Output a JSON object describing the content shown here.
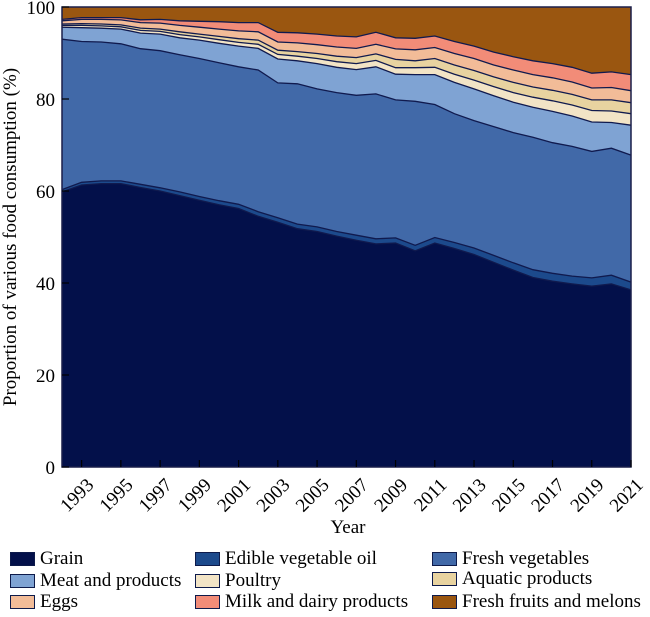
{
  "chart_data": {
    "type": "area",
    "stacked": true,
    "title": "",
    "xlabel": "Year",
    "ylabel": "Proportion of various food consumption (%)",
    "xlim": [
      1992,
      2021
    ],
    "ylim": [
      0,
      100
    ],
    "yticks": [
      0,
      20,
      40,
      60,
      80,
      100
    ],
    "xticks": [
      1993,
      1995,
      1997,
      1999,
      2001,
      2003,
      2005,
      2007,
      2009,
      2011,
      2013,
      2015,
      2017,
      2019,
      2021
    ],
    "grid": false,
    "legend_position": "bottom",
    "x": [
      1992,
      1993,
      1994,
      1995,
      1996,
      1997,
      1998,
      1999,
      2000,
      2001,
      2002,
      2003,
      2004,
      2005,
      2006,
      2007,
      2008,
      2009,
      2010,
      2011,
      2012,
      2013,
      2014,
      2015,
      2016,
      2017,
      2018,
      2019,
      2020,
      2021
    ],
    "series": [
      {
        "name": "Grain",
        "color": "#03104a",
        "values": [
          59.8,
          61.3,
          61.6,
          61.6,
          61.0,
          60.0,
          59.0,
          58.0,
          57.0,
          56.2,
          54.5,
          53.2,
          51.8,
          51.2,
          50.2,
          49.3,
          48.5,
          48.7,
          47.0,
          48.7,
          47.5,
          46.2,
          44.5,
          42.8,
          41.2,
          40.4,
          39.8,
          39.3,
          39.8,
          38.5
        ]
      },
      {
        "name": "Edible vegetable oil",
        "color": "#1c4a8c",
        "values": [
          0.5,
          0.6,
          0.6,
          0.6,
          0.7,
          0.7,
          0.8,
          0.8,
          0.9,
          0.9,
          1.0,
          1.0,
          1.0,
          1.0,
          1.0,
          1.1,
          1.1,
          1.1,
          1.2,
          1.2,
          1.3,
          1.4,
          1.5,
          1.6,
          1.7,
          1.7,
          1.7,
          1.8,
          1.9,
          1.7
        ]
      },
      {
        "name": "Fresh vegetables",
        "color": "#4169a8",
        "values": [
          32.7,
          30.6,
          30.2,
          29.8,
          29.6,
          29.8,
          29.8,
          30.0,
          30.0,
          29.9,
          30.8,
          29.3,
          30.5,
          30.0,
          30.2,
          30.4,
          31.5,
          30.0,
          31.3,
          28.9,
          28.0,
          27.7,
          28.0,
          28.3,
          28.8,
          28.4,
          28.2,
          27.5,
          27.6,
          27.6
        ]
      },
      {
        "name": "Meat and products",
        "color": "#7fa3d3",
        "values": [
          2.6,
          3.0,
          3.0,
          3.2,
          3.4,
          3.6,
          3.7,
          4.0,
          4.2,
          4.5,
          4.7,
          5.2,
          5.0,
          5.5,
          5.5,
          5.6,
          5.9,
          5.6,
          5.8,
          6.5,
          6.8,
          6.9,
          6.7,
          6.6,
          6.5,
          6.8,
          6.6,
          6.4,
          5.6,
          6.5
        ]
      },
      {
        "name": "Poultry",
        "color": "#f2e4c6",
        "values": [
          0.4,
          0.5,
          0.5,
          0.5,
          0.6,
          0.6,
          0.7,
          0.7,
          0.8,
          0.8,
          0.9,
          1.0,
          1.0,
          1.1,
          1.2,
          1.3,
          1.4,
          1.4,
          1.5,
          1.6,
          1.8,
          1.9,
          2.0,
          2.1,
          2.2,
          2.3,
          2.4,
          2.5,
          2.5,
          2.5
        ]
      },
      {
        "name": "Aquatic products",
        "color": "#e8d3a0",
        "values": [
          0.3,
          0.4,
          0.4,
          0.4,
          0.5,
          0.5,
          0.6,
          0.6,
          0.7,
          0.8,
          0.9,
          0.9,
          1.0,
          1.1,
          1.2,
          1.3,
          1.4,
          1.8,
          1.5,
          1.9,
          2.0,
          2.1,
          2.1,
          2.2,
          2.2,
          2.3,
          2.3,
          2.3,
          2.4,
          2.4
        ]
      },
      {
        "name": "Eggs",
        "color": "#f2bc98",
        "values": [
          0.7,
          0.9,
          1.0,
          1.1,
          1.2,
          1.3,
          1.4,
          1.5,
          1.6,
          1.7,
          1.8,
          1.8,
          1.9,
          1.9,
          2.0,
          2.0,
          2.1,
          2.3,
          2.4,
          2.4,
          2.5,
          2.6,
          2.6,
          2.7,
          2.7,
          2.7,
          2.7,
          2.6,
          2.7,
          2.6
        ]
      },
      {
        "name": "Milk and dairy products",
        "color": "#f28c78",
        "values": [
          0.3,
          0.4,
          0.4,
          0.5,
          0.6,
          0.8,
          1.0,
          1.3,
          1.6,
          1.8,
          2.0,
          2.1,
          2.2,
          2.3,
          2.4,
          2.5,
          2.6,
          2.4,
          2.5,
          2.5,
          2.6,
          2.7,
          2.8,
          2.9,
          3.0,
          3.1,
          3.2,
          3.2,
          3.4,
          3.5
        ]
      },
      {
        "name": "Fresh fruits and melons",
        "color": "#9a5610",
        "values": [
          2.7,
          2.3,
          2.3,
          2.3,
          2.8,
          2.7,
          3.0,
          3.1,
          3.2,
          3.4,
          3.4,
          5.5,
          5.6,
          5.9,
          6.3,
          6.5,
          5.5,
          6.7,
          6.8,
          6.3,
          7.5,
          8.5,
          9.8,
          10.8,
          11.7,
          12.3,
          13.1,
          14.4,
          14.1,
          14.7
        ]
      }
    ]
  }
}
